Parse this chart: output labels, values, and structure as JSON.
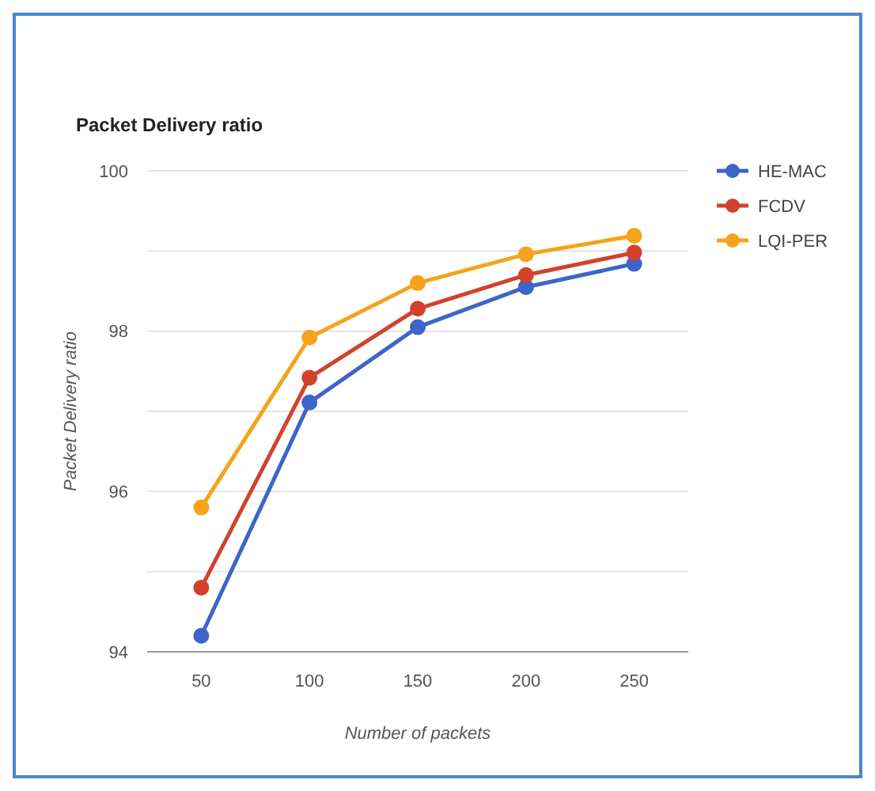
{
  "chart_data": {
    "type": "line",
    "title": "Packet Delivery ratio",
    "xlabel": "Number of packets",
    "ylabel": "Packet Delivery ratio",
    "categories": [
      "50",
      "100",
      "150",
      "200",
      "250"
    ],
    "series": [
      {
        "name": "HE-MAC",
        "color": "#3c65c8",
        "values": [
          94.2,
          97.11,
          98.05,
          98.55,
          98.84
        ]
      },
      {
        "name": "FCDV",
        "color": "#d2422b",
        "values": [
          94.8,
          97.42,
          98.28,
          98.7,
          98.98
        ]
      },
      {
        "name": "LQI-PER",
        "color": "#f5a31a",
        "values": [
          95.8,
          97.92,
          98.6,
          98.96,
          99.19
        ]
      }
    ],
    "ylim": [
      94,
      100
    ],
    "yticks": [
      94,
      {
        "value": 95,
        "label": null
      },
      96,
      {
        "value": 97,
        "label": null
      },
      98,
      {
        "value": 99,
        "label": null
      },
      100
    ],
    "grid": "y",
    "legend": "top right",
    "marker": "circle",
    "line_style": "solid"
  }
}
